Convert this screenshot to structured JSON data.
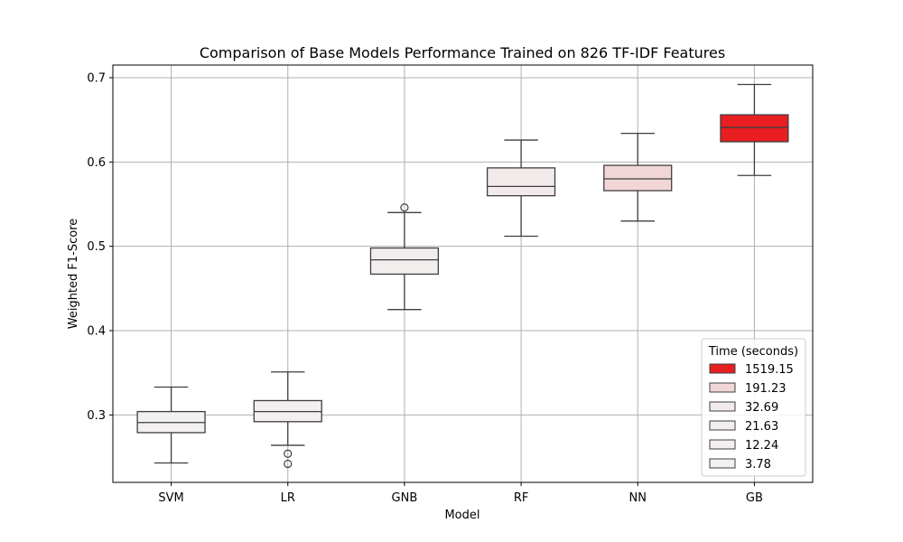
{
  "chart_data": {
    "type": "box",
    "title": "Comparison of Base Models Performance Trained on 826 TF-IDF Features",
    "xlabel": "Model",
    "ylabel": "Weighted F1-Score",
    "ylim": [
      0.22,
      0.715
    ],
    "yticks": [
      "0.3",
      "0.4",
      "0.5",
      "0.6",
      "0.7"
    ],
    "grid": true,
    "legend_position": "bottom-right",
    "legend_title": "Time (seconds)",
    "categories": [
      "SVM",
      "LR",
      "GNB",
      "RF",
      "NN",
      "GB"
    ],
    "boxes": [
      {
        "model": "SVM",
        "whisker_low": 0.243,
        "q1": 0.279,
        "median": 0.291,
        "q3": 0.304,
        "whisker_high": 0.333,
        "outliers": [],
        "color": "#f2f0f0",
        "time": "3.78"
      },
      {
        "model": "LR",
        "whisker_low": 0.264,
        "q1": 0.292,
        "median": 0.304,
        "q3": 0.317,
        "whisker_high": 0.351,
        "outliers": [
          0.254,
          0.242
        ],
        "color": "#f2efee",
        "time": "12.24"
      },
      {
        "model": "GNB",
        "whisker_low": 0.425,
        "q1": 0.467,
        "median": 0.484,
        "q3": 0.498,
        "whisker_high": 0.54,
        "outliers": [
          0.546
        ],
        "color": "#f2eeee",
        "time": "21.63"
      },
      {
        "model": "RF",
        "whisker_low": 0.512,
        "q1": 0.56,
        "median": 0.571,
        "q3": 0.593,
        "whisker_high": 0.626,
        "outliers": [],
        "color": "#f3ebeb",
        "time": "32.69"
      },
      {
        "model": "NN",
        "whisker_low": 0.53,
        "q1": 0.566,
        "median": 0.58,
        "q3": 0.596,
        "whisker_high": 0.634,
        "outliers": [],
        "color": "#f2d6d7",
        "time": "191.23"
      },
      {
        "model": "GB",
        "whisker_low": 0.584,
        "q1": 0.624,
        "median": 0.641,
        "q3": 0.656,
        "whisker_high": 0.692,
        "outliers": [],
        "color": "#e81e21",
        "time": "1519.15"
      }
    ],
    "legend": [
      {
        "label": "1519.15",
        "color": "#e81e21"
      },
      {
        "label": "191.23",
        "color": "#f2d6d7"
      },
      {
        "label": "32.69",
        "color": "#f3ebeb"
      },
      {
        "label": "21.63",
        "color": "#f2eeee"
      },
      {
        "label": "12.24",
        "color": "#f2efee"
      },
      {
        "label": "3.78",
        "color": "#f2f0f0"
      }
    ]
  }
}
